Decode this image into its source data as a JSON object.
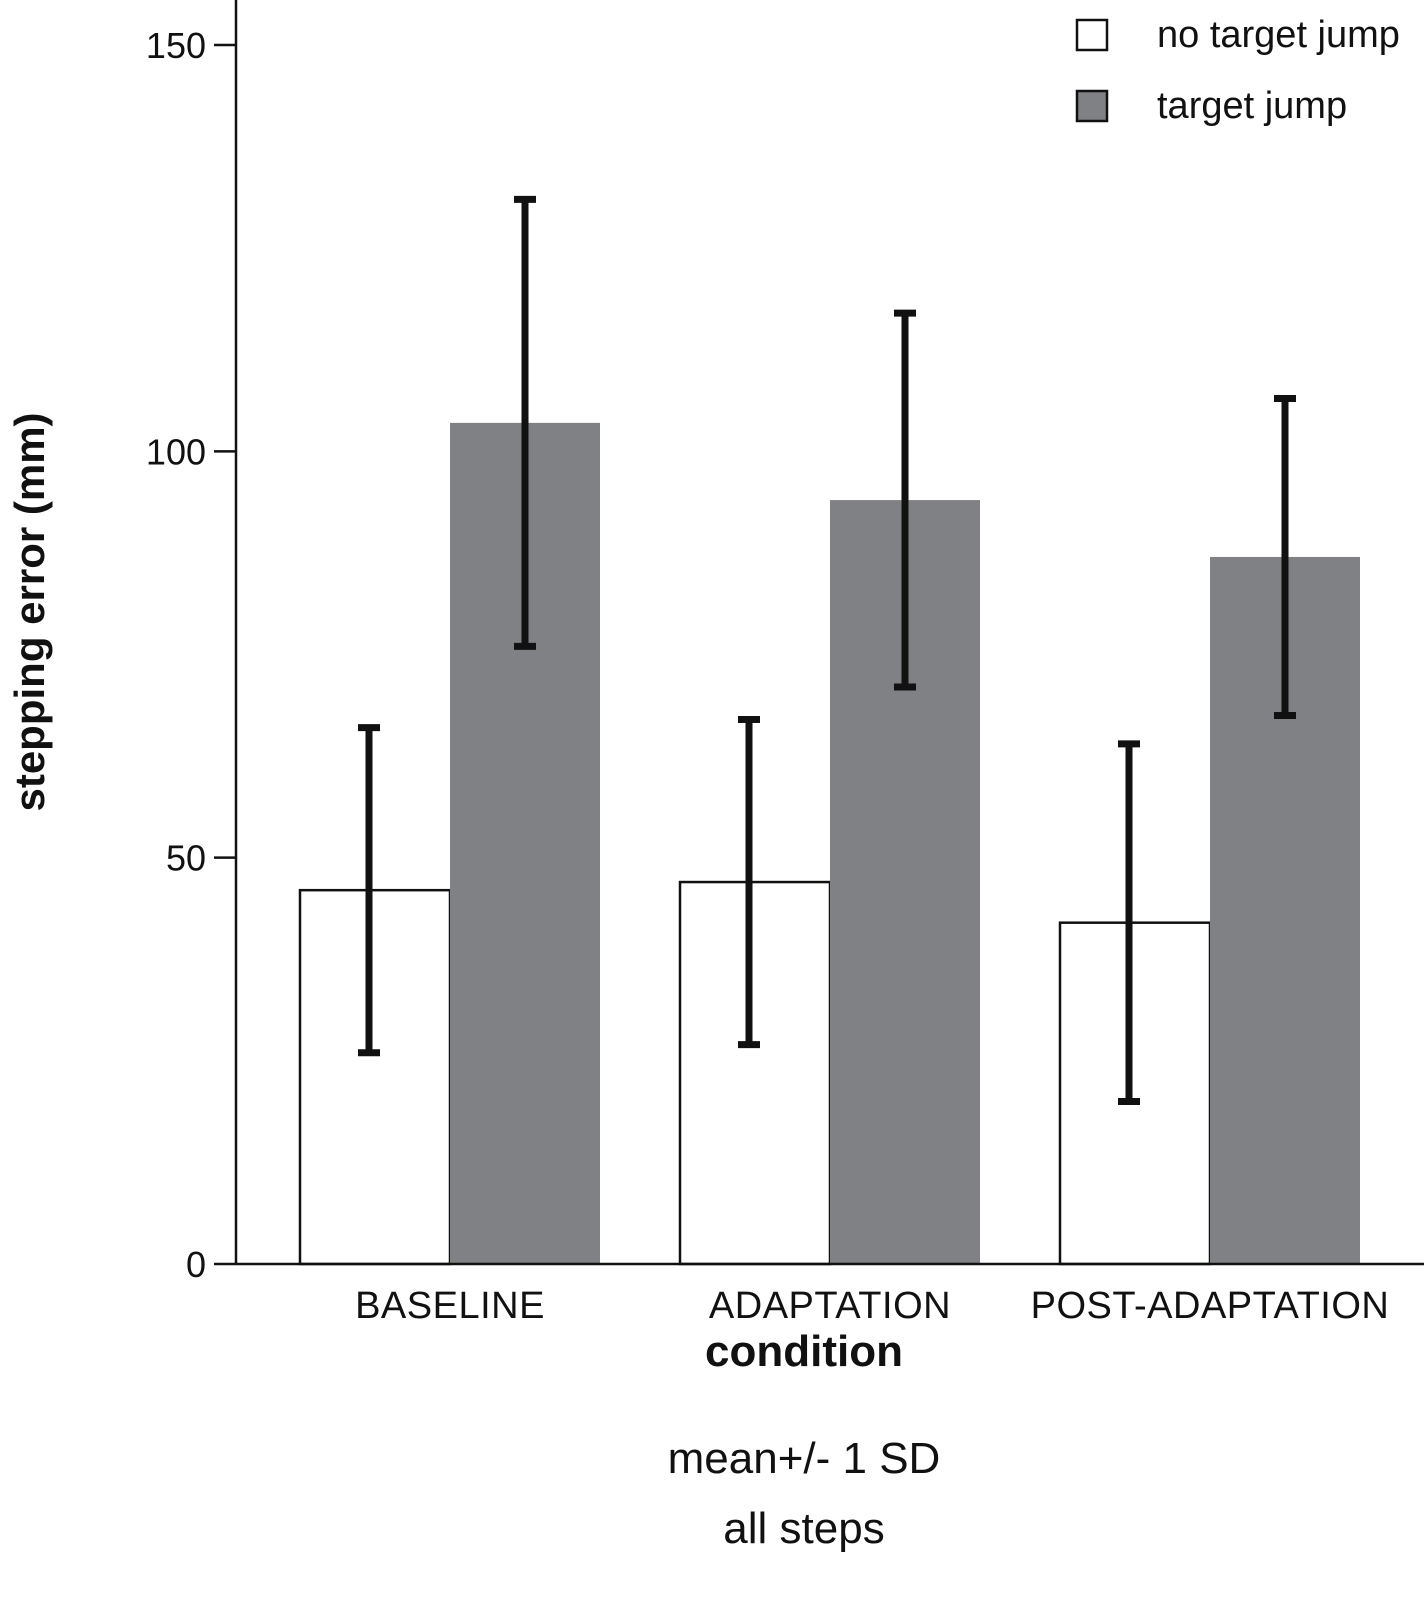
{
  "chart_data": {
    "type": "bar",
    "categories": [
      "BASELINE",
      "ADAPTATION",
      "POST-ADAPTATION"
    ],
    "series": [
      {
        "name": "no target jump",
        "values": [
          46,
          47,
          42
        ],
        "sd": [
          20,
          20,
          22
        ],
        "color": "#ffffff"
      },
      {
        "name": "target jump",
        "values": [
          103.5,
          94,
          87
        ],
        "sd": [
          27.5,
          23,
          19.5
        ],
        "color": "#808184"
      }
    ],
    "error_bars": "mean +/- 1 SD",
    "xlabel": "condition",
    "ylabel": "stepping error (mm)",
    "ylim": [
      0,
      150
    ],
    "yticks": [
      0,
      50,
      100,
      150
    ],
    "grid": false,
    "legend_position": "top-right",
    "notes": [
      "mean+/- 1 SD",
      "all steps"
    ]
  }
}
